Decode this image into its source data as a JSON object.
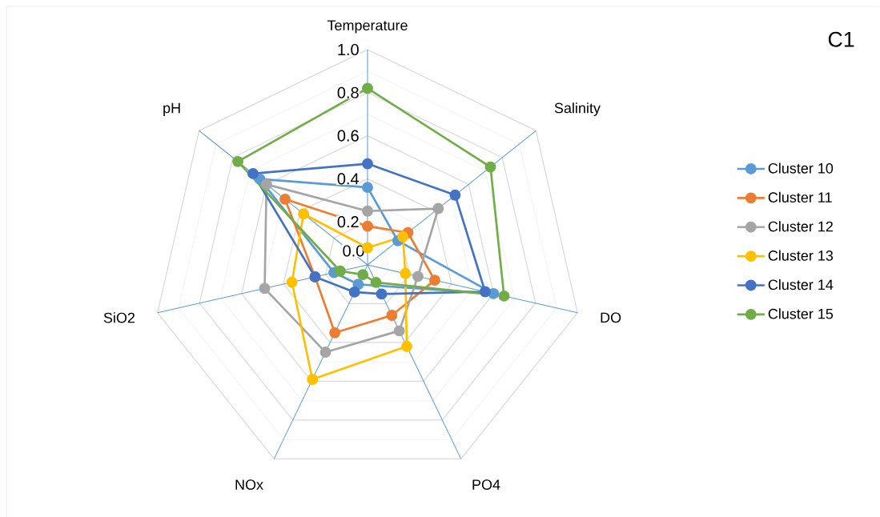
{
  "chart_data": {
    "type": "radar",
    "title": "C1",
    "categories": [
      "Temperature",
      "Salinity",
      "DO",
      "PO4",
      "NOx",
      "SiO2",
      "pH"
    ],
    "series": [
      {
        "name": "Cluster 10",
        "color": "#5b9bd5",
        "values": [
          0.36,
          0.18,
          0.6,
          null,
          0.1,
          0.16,
          0.64
        ]
      },
      {
        "name": "Cluster 11",
        "color": "#ed7d31",
        "values": [
          0.18,
          0.24,
          0.32,
          0.26,
          0.35,
          0.25,
          0.49
        ]
      },
      {
        "name": "Cluster 12",
        "color": "#a5a5a5",
        "values": [
          0.25,
          0.42,
          0.24,
          0.34,
          0.45,
          0.49,
          0.6
        ]
      },
      {
        "name": "Cluster 13",
        "color": "#ffc000",
        "values": [
          0.08,
          0.21,
          0.18,
          0.42,
          0.59,
          0.36,
          0.38
        ]
      },
      {
        "name": "Cluster 14",
        "color": "#4472c4",
        "values": [
          0.47,
          0.52,
          0.56,
          0.15,
          0.14,
          0.25,
          0.68
        ]
      },
      {
        "name": "Cluster 15",
        "color": "#70ad47",
        "values": [
          0.82,
          0.73,
          0.65,
          0.09,
          0.05,
          0.13,
          0.77
        ]
      }
    ],
    "ylim": [
      0,
      1
    ],
    "yticks": [
      {
        "value": 0,
        "label": "0.0"
      },
      0.2,
      0.4,
      0.6,
      0.8,
      {
        "value": 1,
        "label": "1.0"
      }
    ],
    "grid": true,
    "legend": "right",
    "marker": "circle",
    "line_style": "solid"
  }
}
